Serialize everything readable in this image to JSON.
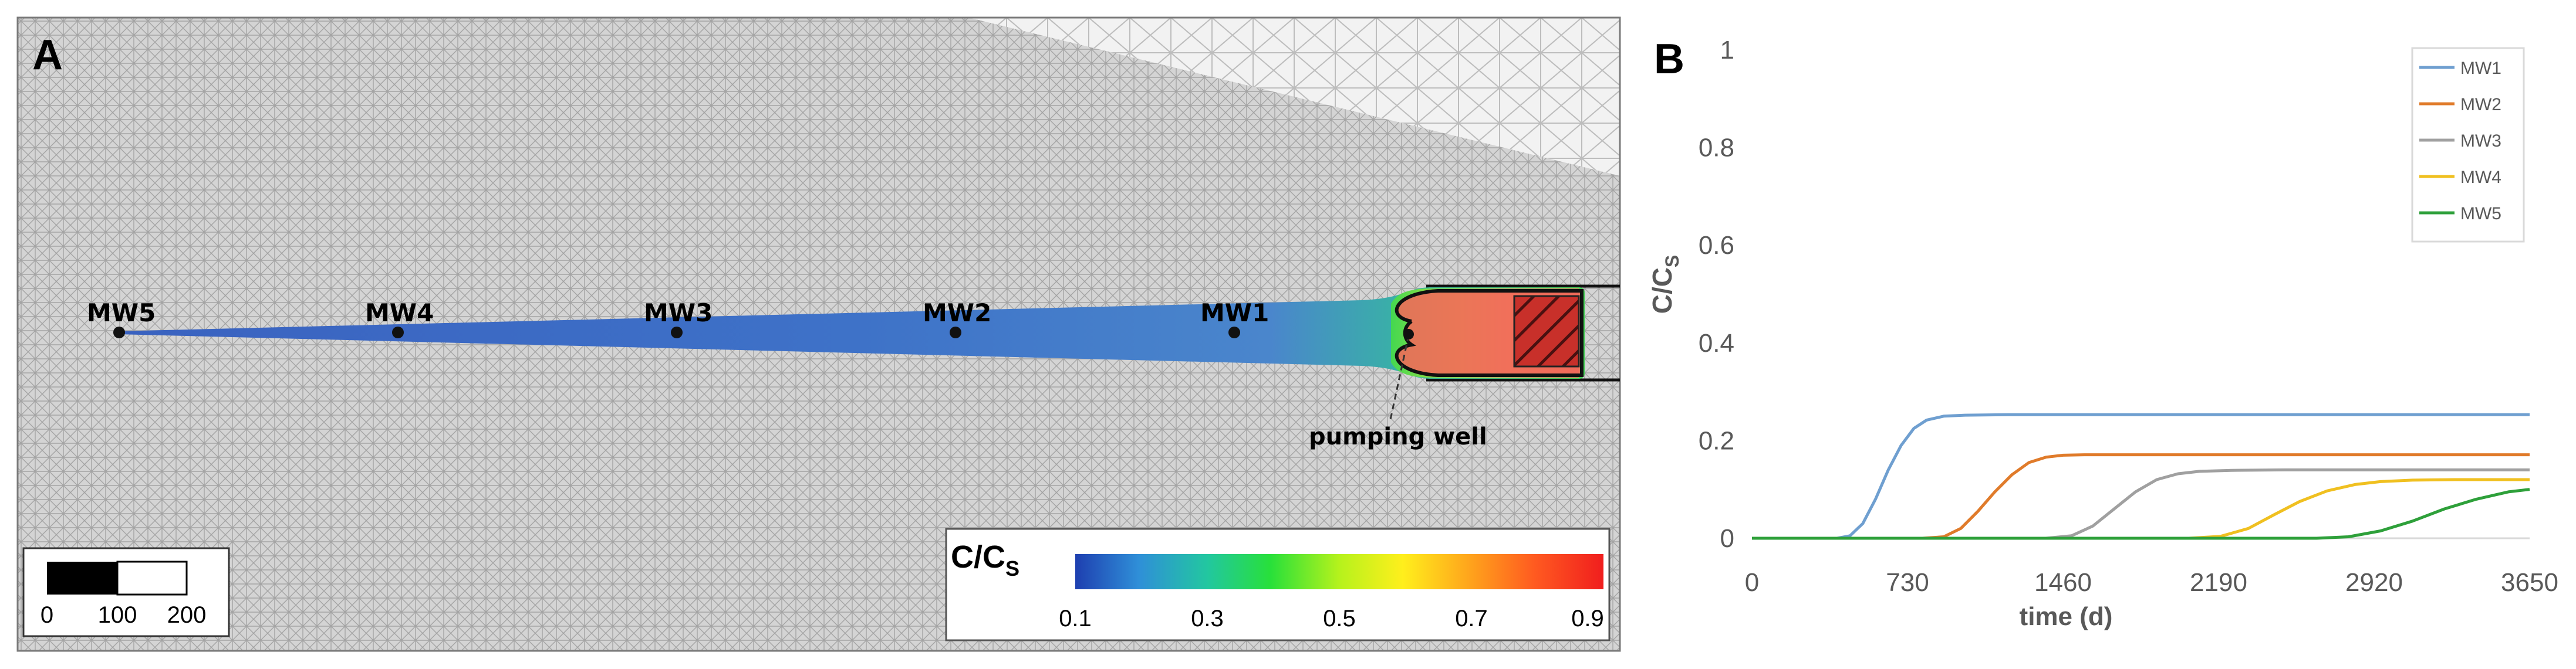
{
  "panel_a": {
    "label": "A",
    "wells": [
      "MW5",
      "MW4",
      "MW3",
      "MW2",
      "MW1"
    ],
    "pumping_well_label": "pumping well",
    "colorbar": {
      "title_main": "C/C",
      "title_sub": "S",
      "ticks": [
        "0.1",
        "0.3",
        "0.5",
        "0.7",
        "0.9"
      ],
      "colors": [
        "#1e3fb0",
        "#2f8fd8",
        "#22c7a0",
        "#28e03a",
        "#b6f21c",
        "#ffef1c",
        "#ffa21c",
        "#ff5a20",
        "#f01e1e"
      ]
    },
    "scale_bar": {
      "ticks": [
        "0",
        "100",
        "200"
      ]
    },
    "colors": {
      "plume_blue": "#3f74c8",
      "plume_green": "#44d850",
      "plume_red": "#f0705a",
      "mesh": "#b8b8b8"
    }
  },
  "panel_b": {
    "label": "B",
    "axis_title_y_main": "C/C",
    "axis_title_y_sub": "S",
    "x_tick_labels": [
      "0",
      "730",
      "1460",
      "2190",
      "2920",
      "3650"
    ],
    "y_tick_labels": [
      "0",
      "0.2",
      "0.4",
      "0.6",
      "0.8",
      "1"
    ]
  },
  "chart_data": {
    "type": "line",
    "title": "",
    "xlabel": "time (d)",
    "ylabel": "C/Cs",
    "xlim": [
      0,
      3650
    ],
    "ylim": [
      0,
      1
    ],
    "xticks": [
      0,
      730,
      1460,
      2190,
      2920,
      3650
    ],
    "yticks": [
      0,
      0.2,
      0.4,
      0.6,
      0.8,
      1
    ],
    "legend_position": "top-right",
    "series": [
      {
        "name": "MW1",
        "color": "#6f9fd0",
        "x": [
          0,
          400,
          460,
          520,
          580,
          640,
          700,
          760,
          820,
          900,
          1000,
          1200,
          1600,
          2200,
          3000,
          3650
        ],
        "y": [
          0,
          0,
          0.005,
          0.03,
          0.08,
          0.14,
          0.19,
          0.225,
          0.242,
          0.25,
          0.252,
          0.253,
          0.253,
          0.253,
          0.253,
          0.253
        ]
      },
      {
        "name": "MW2",
        "color": "#e07b2a",
        "x": [
          0,
          800,
          900,
          980,
          1060,
          1140,
          1220,
          1300,
          1380,
          1460,
          1560,
          1700,
          2200,
          3000,
          3650
        ],
        "y": [
          0,
          0,
          0.003,
          0.02,
          0.055,
          0.095,
          0.13,
          0.155,
          0.166,
          0.17,
          0.171,
          0.171,
          0.171,
          0.171,
          0.171
        ]
      },
      {
        "name": "MW3",
        "color": "#a0a0a0",
        "x": [
          0,
          1380,
          1500,
          1600,
          1700,
          1800,
          1900,
          2000,
          2100,
          2250,
          2500,
          3000,
          3650
        ],
        "y": [
          0,
          0,
          0.005,
          0.025,
          0.06,
          0.095,
          0.12,
          0.132,
          0.137,
          0.139,
          0.14,
          0.14,
          0.14
        ]
      },
      {
        "name": "MW4",
        "color": "#f0c020",
        "x": [
          0,
          2050,
          2200,
          2330,
          2450,
          2570,
          2700,
          2830,
          2950,
          3100,
          3300,
          3650
        ],
        "y": [
          0,
          0,
          0.004,
          0.02,
          0.048,
          0.075,
          0.097,
          0.11,
          0.116,
          0.119,
          0.12,
          0.12
        ]
      },
      {
        "name": "MW5",
        "color": "#2ea03a",
        "x": [
          0,
          2650,
          2800,
          2950,
          3100,
          3250,
          3400,
          3550,
          3650
        ],
        "y": [
          0,
          0,
          0.003,
          0.015,
          0.035,
          0.06,
          0.08,
          0.095,
          0.1
        ]
      }
    ]
  }
}
